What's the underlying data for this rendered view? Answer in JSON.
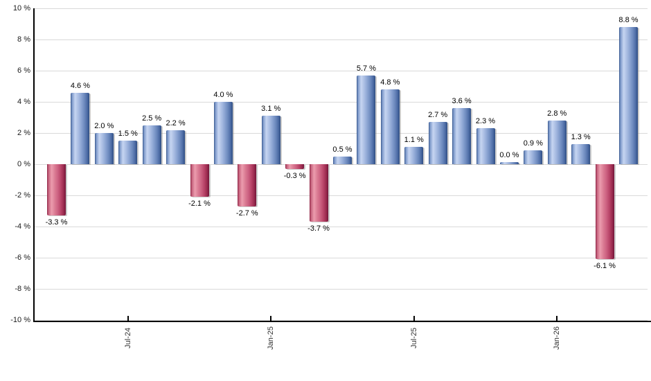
{
  "chart_data": {
    "type": "bar",
    "title": "",
    "xlabel": "",
    "ylabel": "",
    "ylim": [
      -10,
      10
    ],
    "y_tick_step": 2,
    "grid": true,
    "legend_position": "none",
    "y_tick_labels": [
      "10 %",
      "8 %",
      "6 %",
      "4 %",
      "2 %",
      "0 %",
      "-2 %",
      "-4 %",
      "-6 %",
      "-8 %",
      "-10 %"
    ],
    "values": [
      -3.3,
      4.6,
      2.0,
      1.5,
      2.5,
      2.2,
      -2.1,
      4.0,
      -2.7,
      3.1,
      -0.3,
      -3.7,
      0.5,
      5.7,
      4.8,
      1.1,
      2.7,
      3.6,
      2.3,
      0.0,
      0.9,
      2.8,
      1.3,
      -6.1,
      8.8
    ],
    "value_labels": [
      "-3.3 %",
      "4.6 %",
      "2.0 %",
      "1.5 %",
      "2.5 %",
      "2.2 %",
      "-2.1 %",
      "4.0 %",
      "-2.7 %",
      "3.1 %",
      "-0.3 %",
      "-3.7 %",
      "0.5 %",
      "5.7 %",
      "4.8 %",
      "1.1 %",
      "2.7 %",
      "3.6 %",
      "2.3 %",
      "0.0 %",
      "0.9 %",
      "2.8 %",
      "1.3 %",
      "-6.1 %",
      "8.8 %"
    ],
    "x_ticks": [
      {
        "index": 3,
        "label": "Jul-24"
      },
      {
        "index": 9,
        "label": "Jan-25"
      },
      {
        "index": 15,
        "label": "Jul-25"
      },
      {
        "index": 21,
        "label": "Jan-26"
      }
    ],
    "colors": {
      "positive_fill": "#6f93c8",
      "positive_highlight": "#c6d5f1",
      "positive_edge": "#2e4d83",
      "negative_fill": "#c65573",
      "negative_highlight": "#ec9cae",
      "negative_edge": "#74163a",
      "grid": "#d9d9d9",
      "axis": "#000000",
      "value_label_text": "#000000",
      "tick_label_text": "#333333"
    }
  }
}
